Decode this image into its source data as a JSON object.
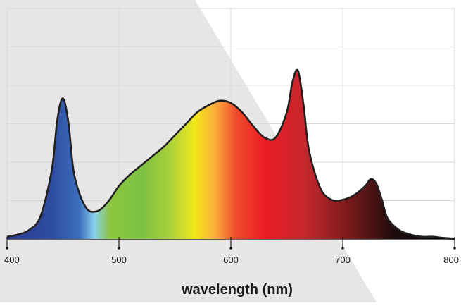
{
  "chart_data": {
    "type": "area",
    "title": "",
    "xlabel": "wavelength (nm)",
    "ylabel": "",
    "xlim": [
      400,
      800
    ],
    "ylim": [
      0,
      100
    ],
    "xticks": [
      "400",
      "500",
      "600",
      "700",
      "800"
    ],
    "grid": true,
    "legend": "none",
    "fill": "visible spectrum gradient",
    "series": [
      {
        "x": [
          400,
          410,
          420,
          430,
          440,
          445,
          450,
          455,
          460,
          470,
          480,
          490,
          500,
          510,
          520,
          530,
          540,
          550,
          560,
          570,
          580,
          590,
          600,
          610,
          620,
          630,
          640,
          650,
          655,
          660,
          665,
          670,
          680,
          690,
          700,
          710,
          720,
          725,
          730,
          735,
          740,
          750,
          760,
          770,
          780,
          790,
          800
        ],
        "y": [
          1,
          2,
          4,
          10,
          30,
          52,
          61,
          50,
          28,
          14,
          12,
          16,
          23,
          28,
          32,
          36,
          40,
          45,
          50,
          55,
          58,
          60,
          59,
          55,
          49,
          44,
          44,
          55,
          68,
          73,
          58,
          38,
          22,
          17,
          17,
          19,
          23,
          26,
          24,
          17,
          9,
          4,
          2,
          1,
          1,
          0.5,
          0.2
        ]
      }
    ]
  },
  "colors": {
    "stroke": "#231f20",
    "background_triangle": "#e6e6e6",
    "grid": "#d9d9d9",
    "axis_text": "#1a1a1a",
    "spectrum_stops": [
      {
        "nm": 400,
        "color": "#2b3a8e"
      },
      {
        "nm": 440,
        "color": "#2e4da0"
      },
      {
        "nm": 465,
        "color": "#3d6fbf"
      },
      {
        "nm": 478,
        "color": "#86cfec"
      },
      {
        "nm": 492,
        "color": "#8cc63f"
      },
      {
        "nm": 520,
        "color": "#7cc142"
      },
      {
        "nm": 545,
        "color": "#a8cf3c"
      },
      {
        "nm": 568,
        "color": "#f2e81a"
      },
      {
        "nm": 585,
        "color": "#fbb03b"
      },
      {
        "nm": 605,
        "color": "#ef4b2c"
      },
      {
        "nm": 630,
        "color": "#ed1c24"
      },
      {
        "nm": 668,
        "color": "#c1272d"
      },
      {
        "nm": 705,
        "color": "#7a1a1a"
      },
      {
        "nm": 745,
        "color": "#1f0d0d"
      },
      {
        "nm": 800,
        "color": "#000000"
      }
    ]
  }
}
